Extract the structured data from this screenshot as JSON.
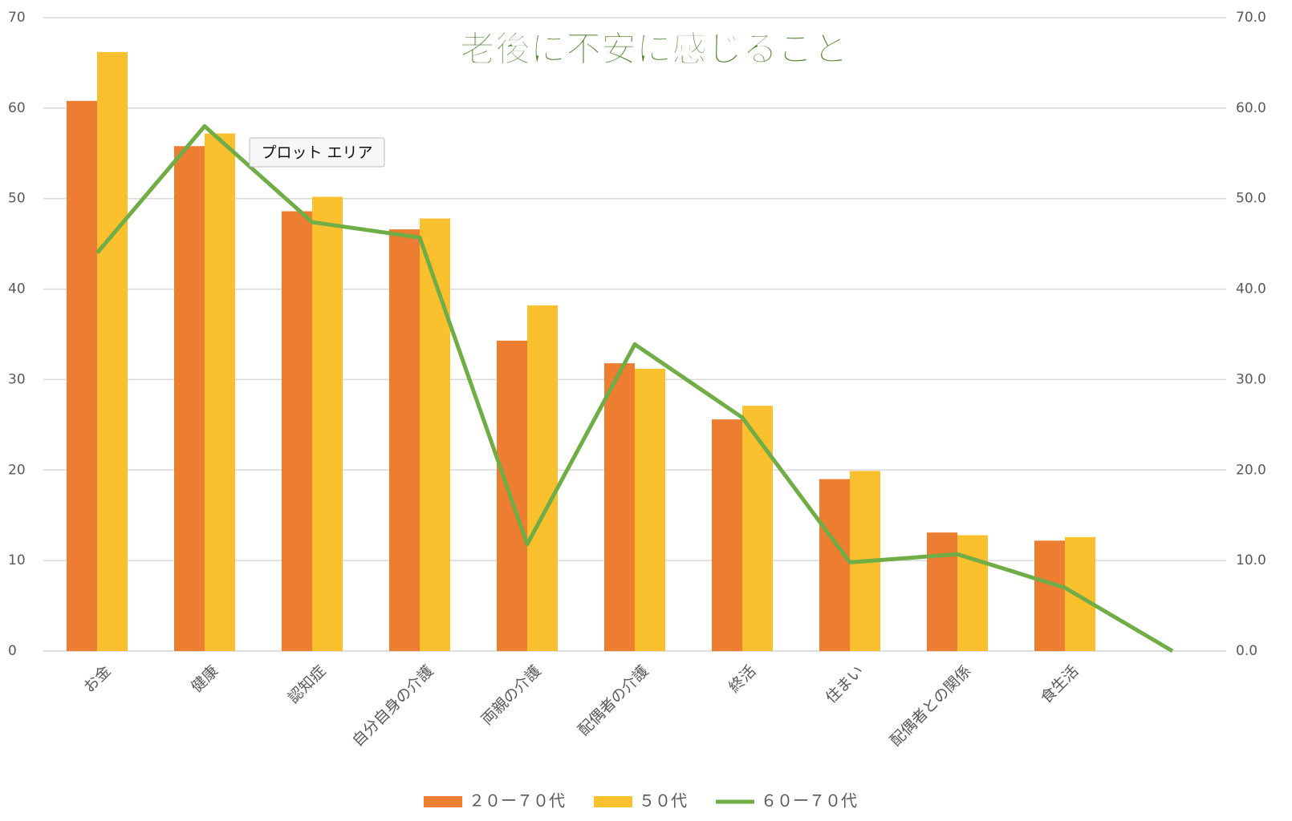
{
  "chart_data": {
    "type": "bar_line",
    "title": "老後に不安に感じること",
    "tooltip": "プロット エリア",
    "categories": [
      "お金",
      "健康",
      "認知症",
      "自分自身の介護",
      "両親の介護",
      "配偶者の介護",
      "終活",
      "住まい",
      "配偶者との関係",
      "食生活",
      null
    ],
    "series": [
      {
        "name": "２０ー７０代",
        "type": "bar",
        "color": "#ED7D31",
        "values": [
          60.8,
          55.8,
          48.6,
          46.6,
          34.3,
          31.8,
          25.6,
          19.0,
          13.1,
          12.2,
          null
        ]
      },
      {
        "name": "５０代",
        "type": "bar",
        "color": "#FBC02D",
        "values": [
          66.2,
          57.2,
          50.2,
          47.8,
          38.2,
          31.2,
          27.1,
          19.9,
          12.8,
          12.6,
          null
        ]
      },
      {
        "name": "６０ー７０代",
        "type": "line",
        "axis": "y2",
        "color": "#70AD47",
        "values": [
          44.0,
          58.0,
          47.4,
          45.7,
          11.8,
          33.9,
          25.8,
          9.8,
          10.7,
          7.0,
          0.0
        ]
      }
    ],
    "ylim": [
      0,
      70
    ],
    "yticks": [
      0,
      10,
      20,
      30,
      40,
      50,
      60,
      70
    ],
    "y2lim": [
      0,
      70
    ],
    "y2ticks": [
      {
        "value": 0,
        "label": "0.0"
      },
      {
        "value": 10,
        "label": "10.0"
      },
      {
        "value": 20,
        "label": "20.0"
      },
      {
        "value": 30,
        "label": "30.0"
      },
      {
        "value": 40,
        "label": "40.0"
      },
      {
        "value": 50,
        "label": "50.0"
      },
      {
        "value": 60,
        "label": "60.0"
      },
      {
        "value": 70,
        "label": "70.0"
      }
    ],
    "grid": true,
    "legend": "bottom"
  }
}
